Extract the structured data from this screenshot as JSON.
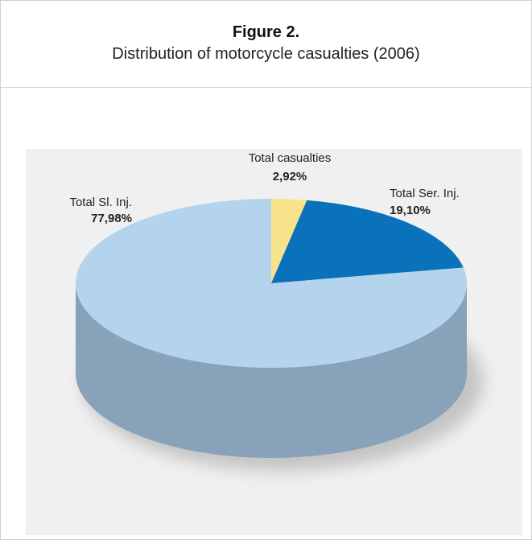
{
  "figure": {
    "number": "Figure 2.",
    "title": "Distribution of motorcycle casualties (2006)"
  },
  "chart_data": {
    "type": "pie",
    "style": "3d",
    "categories": [
      "Total casualties",
      "Total Ser. Inj.",
      "Total Sl. Inj."
    ],
    "values": [
      2.92,
      19.1,
      77.98
    ],
    "value_labels": [
      "2,92%",
      "19,10%",
      "77,98%"
    ],
    "colors": [
      "#f7e38a",
      "#0a72bb",
      "#b3d4ec"
    ],
    "side_colors": [
      "#c9b65a",
      "#0b5690",
      "#87a2b9"
    ],
    "background_color": "#f0f0f0"
  }
}
